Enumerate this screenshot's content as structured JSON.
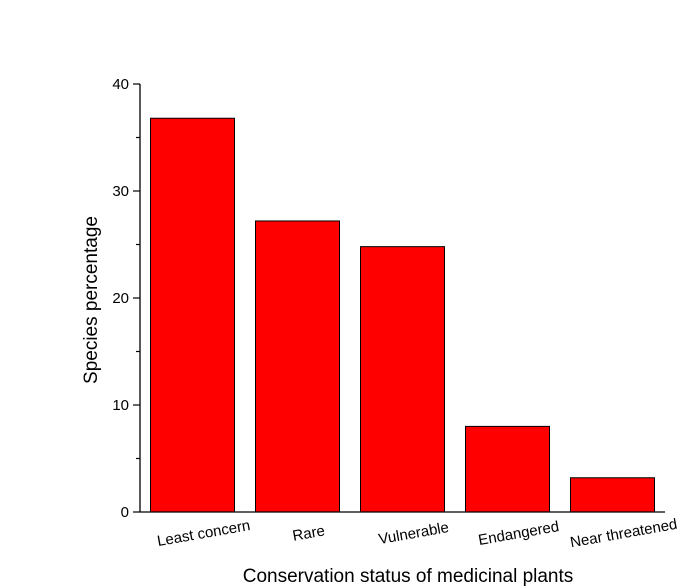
{
  "chart_data": {
    "type": "bar",
    "title": "",
    "xlabel": "Conservation status of medicinal plants",
    "ylabel": "Species percentage",
    "categories": [
      "Least concern",
      "Rare",
      "Vulnerable",
      "Endangered",
      "Near threatened"
    ],
    "values": [
      36.8,
      27.2,
      24.8,
      8.0,
      3.2
    ],
    "ylim": [
      0,
      40
    ],
    "yticks": [
      0,
      10,
      20,
      30,
      40
    ],
    "grid": false,
    "legend": "none",
    "bar_color": "#ff0000",
    "edge_color": "#000000"
  }
}
